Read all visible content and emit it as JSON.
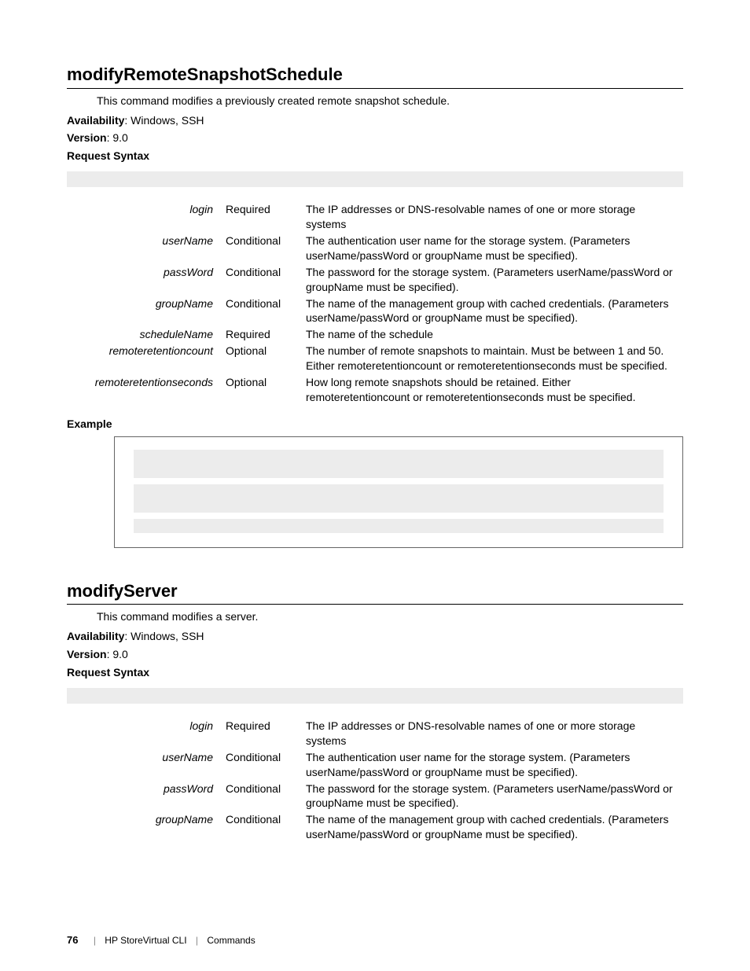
{
  "section1": {
    "title": "modifyRemoteSnapshotSchedule",
    "intro": "This command modifies a previously created remote snapshot schedule.",
    "availability_label": "Availability",
    "availability_value": ": Windows, SSH",
    "version_label": "Version",
    "version_value": ": 9.0",
    "request_syntax_label": "Request Syntax",
    "example_label": "Example",
    "params": [
      {
        "name": "login",
        "req": "Required",
        "desc": "The IP addresses or DNS-resolvable names of one or more storage systems"
      },
      {
        "name": "userName",
        "req": "Conditional",
        "desc": "The authentication user name for the storage system. (Parameters userName/passWord or groupName must be specified)."
      },
      {
        "name": "passWord",
        "req": "Conditional",
        "desc": "The password for the storage system. (Parameters userName/passWord or groupName must be specified)."
      },
      {
        "name": "groupName",
        "req": "Conditional",
        "desc": "The name of the management group with cached credentials. (Parameters userName/passWord or groupName must be specified)."
      },
      {
        "name": "scheduleName",
        "req": "Required",
        "desc": "The name of the schedule"
      },
      {
        "name": "remoteretentioncount",
        "req": "Optional",
        "desc": "The number of remote snapshots to maintain. Must be between 1 and 50. Either remoteretentioncount or remoteretentionseconds must be specified."
      },
      {
        "name": "remoteretentionseconds",
        "req": "Optional",
        "desc": "How long remote snapshots should be retained. Either remoteretentioncount or remoteretentionseconds must be specified."
      }
    ]
  },
  "section2": {
    "title": "modifyServer",
    "intro": "This command modifies a server.",
    "availability_label": "Availability",
    "availability_value": ": Windows, SSH",
    "version_label": "Version",
    "version_value": ": 9.0",
    "request_syntax_label": "Request Syntax",
    "params": [
      {
        "name": "login",
        "req": "Required",
        "desc": "The IP addresses or DNS-resolvable names of one or more storage systems"
      },
      {
        "name": "userName",
        "req": "Conditional",
        "desc": "The authentication user name for the storage system. (Parameters userName/passWord or groupName must be specified)."
      },
      {
        "name": "passWord",
        "req": "Conditional",
        "desc": "The password for the storage system. (Parameters userName/passWord or groupName must be specified)."
      },
      {
        "name": "groupName",
        "req": "Conditional",
        "desc": "The name of the management group with cached credentials. (Parameters userName/passWord or groupName must be specified)."
      }
    ]
  },
  "footer": {
    "page": "76",
    "left": "HP StoreVirtual CLI",
    "right": "Commands"
  }
}
